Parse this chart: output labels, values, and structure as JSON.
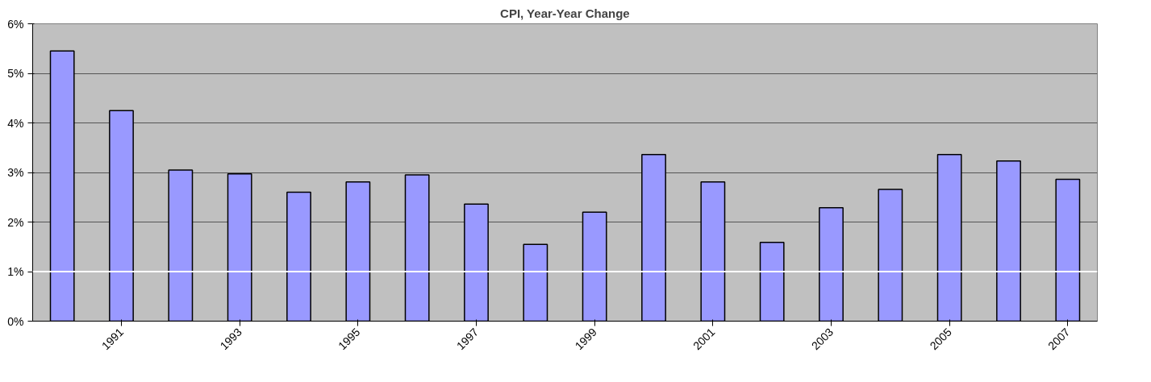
{
  "chart_data": {
    "type": "bar",
    "title": "CPI, Year-Year Change",
    "categories": [
      null,
      "1991",
      null,
      "1993",
      null,
      "1995",
      null,
      "1997",
      null,
      "1999",
      null,
      "2001",
      null,
      "2003",
      null,
      "2005",
      null,
      "2007"
    ],
    "values": [
      5.45,
      4.25,
      3.05,
      2.97,
      2.6,
      2.81,
      2.95,
      2.36,
      1.55,
      2.2,
      3.36,
      2.81,
      1.59,
      2.29,
      2.66,
      3.36,
      3.23,
      2.86
    ],
    "color": "#9999ff",
    "ylim": [
      0,
      6
    ],
    "yticks": [
      {
        "value": 0,
        "label": "0%"
      },
      {
        "value": 1,
        "label": "1%"
      },
      {
        "value": 2,
        "label": "2%"
      },
      {
        "value": 3,
        "label": "3%"
      },
      {
        "value": 4,
        "label": "4%"
      },
      {
        "value": 5,
        "label": "5%"
      },
      {
        "value": 6,
        "label": "6%"
      }
    ],
    "grid": "y",
    "ref_lines": [
      {
        "axis": "y",
        "value": 1,
        "color": "#ffffff"
      }
    ]
  }
}
